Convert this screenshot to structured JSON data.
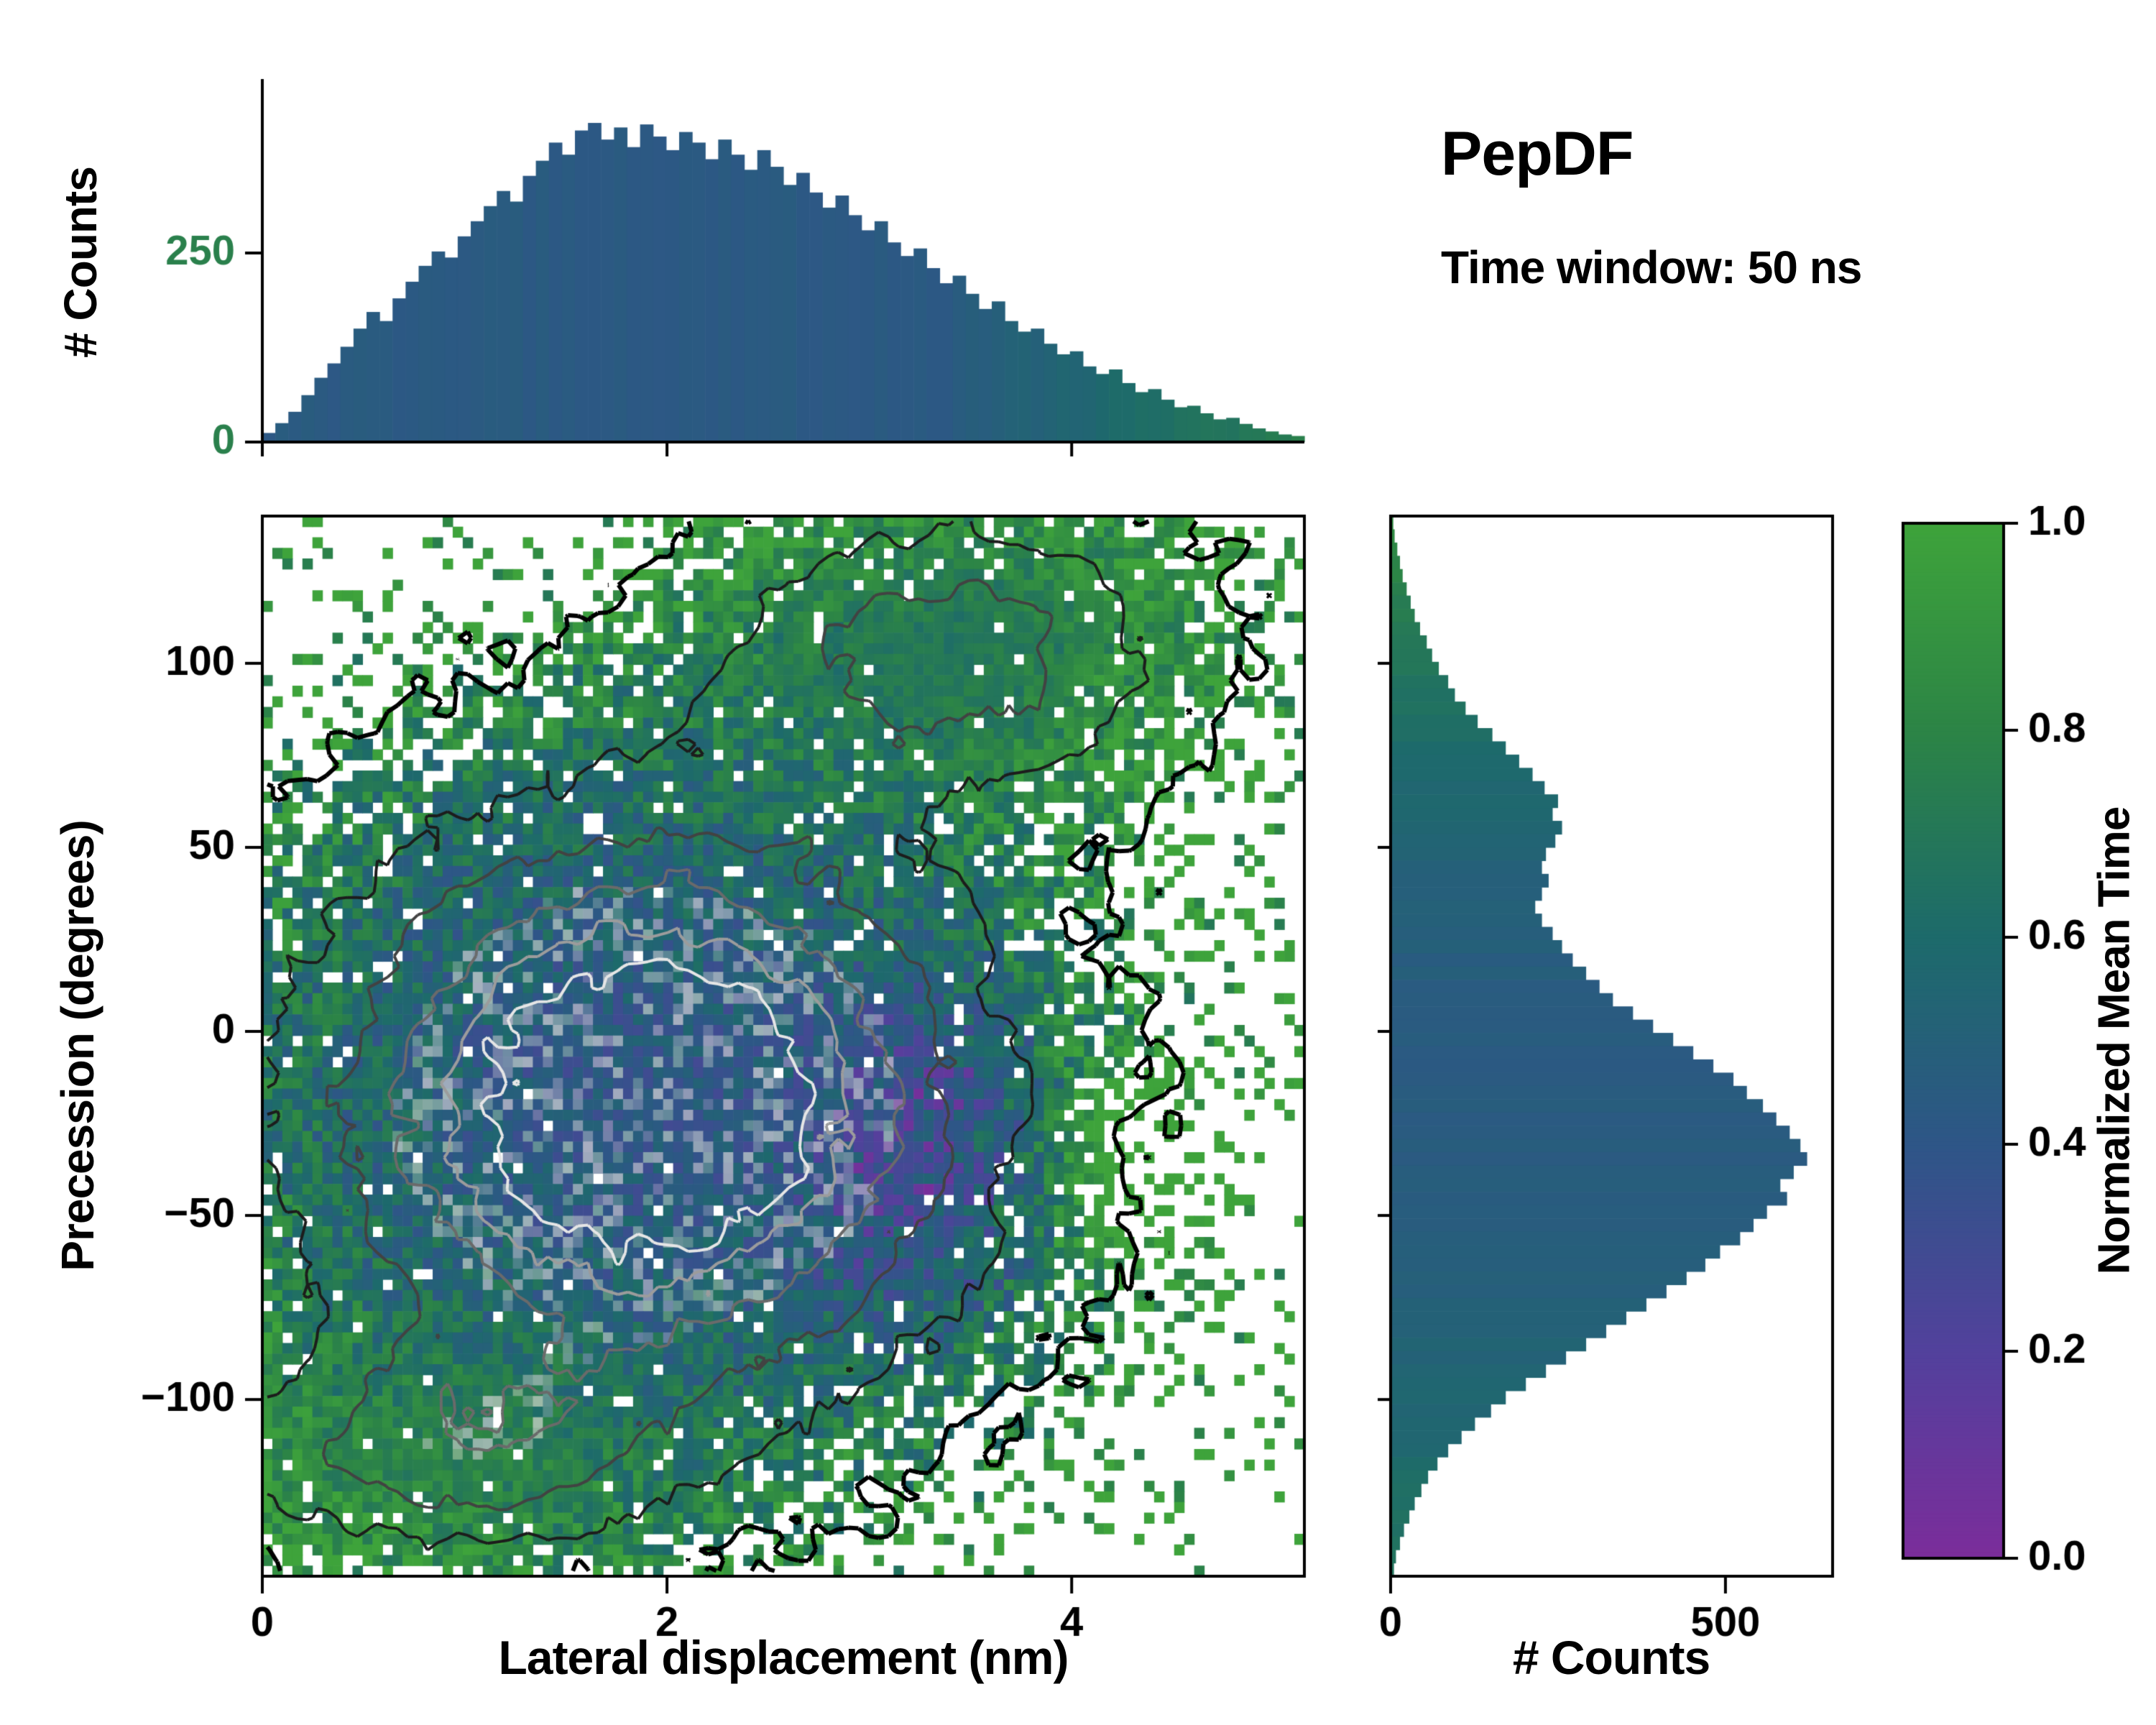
{
  "title": "PepDF",
  "subtitle": "Time window: 50 ns",
  "colormap": {
    "label": "Normalized Mean Time",
    "stops": [
      "#7b2d9b",
      "#52419c",
      "#2e5687",
      "#1d6a6b",
      "#2c8446",
      "#3ea33b"
    ],
    "ticks": [
      {
        "v": 0.0,
        "label": "0.0"
      },
      {
        "v": 0.2,
        "label": "0.2"
      },
      {
        "v": 0.4,
        "label": "0.4"
      },
      {
        "v": 0.6,
        "label": "0.6"
      },
      {
        "v": 0.8,
        "label": "0.8"
      },
      {
        "v": 1.0,
        "label": "1.0"
      }
    ]
  },
  "chart_data": [
    {
      "type": "bar",
      "name": "top-marginal-histogram",
      "ylabel": "# Counts",
      "x_range": [
        0,
        5.15
      ],
      "ylim": [
        0,
        480
      ],
      "y_ticks": [
        {
          "v": 0,
          "label": "0"
        },
        {
          "v": 250,
          "label": "250"
        }
      ],
      "x_ticks_unlabeled": [
        0,
        2,
        4
      ],
      "values": [
        12,
        25,
        40,
        62,
        85,
        104,
        126,
        150,
        172,
        160,
        190,
        212,
        233,
        252,
        244,
        272,
        292,
        312,
        332,
        318,
        352,
        372,
        396,
        380,
        412,
        422,
        400,
        416,
        390,
        420,
        404,
        386,
        410,
        396,
        374,
        400,
        380,
        360,
        386,
        364,
        340,
        356,
        330,
        310,
        326,
        300,
        280,
        292,
        264,
        246,
        256,
        230,
        210,
        220,
        196,
        176,
        186,
        160,
        146,
        150,
        130,
        116,
        120,
        100,
        90,
        96,
        78,
        66,
        70,
        56,
        46,
        48,
        38,
        30,
        32,
        24,
        18,
        14,
        10,
        8
      ]
    },
    {
      "type": "heatmap",
      "name": "main-density-map",
      "xlabel": "Lateral displacement (nm)",
      "ylabel": "Precession (degrees)",
      "value_label": "Normalized Mean Time",
      "xlim": [
        0,
        5.15
      ],
      "ylim": [
        -148,
        140
      ],
      "x_ticks": [
        {
          "v": 0,
          "label": "0"
        },
        {
          "v": 2,
          "label": "2"
        },
        {
          "v": 4,
          "label": "4"
        }
      ],
      "y_ticks": [
        {
          "v": 100,
          "label": "100"
        },
        {
          "v": 50,
          "label": "50"
        },
        {
          "v": 0,
          "label": "0"
        },
        {
          "v": -50,
          "label": "−50"
        },
        {
          "v": -100,
          "label": "−100"
        }
      ],
      "grid": [
        104,
        100
      ],
      "generator": {
        "seed": 7,
        "blobs": [
          {
            "x": 1.9,
            "y": -20,
            "sx": 1.15,
            "sy": 55,
            "a": 1.0
          },
          {
            "x": 3.4,
            "y": 105,
            "sx": 0.8,
            "sy": 26,
            "a": 0.5
          },
          {
            "x": 0.85,
            "y": -115,
            "sx": 0.8,
            "sy": 20,
            "a": 0.4
          }
        ],
        "mask_threshold": 0.13,
        "purple_patch": {
          "x": 3.3,
          "y": -35,
          "sx": 0.55,
          "sy": 45,
          "amp": 0.38
        },
        "green_patch": {
          "x": 4.35,
          "y": -33,
          "sx": 0.33,
          "sy": 26,
          "amp": 0.55
        }
      },
      "contours": {
        "levels": [
          0.13,
          0.3,
          0.46,
          0.6,
          0.72,
          0.82
        ],
        "colors": [
          "#000000",
          "#1c1c1c",
          "#424242",
          "#6a6a6a",
          "#9c9c9c",
          "#e6e6e6"
        ],
        "widths": [
          6,
          4,
          4,
          4,
          4,
          4
        ]
      }
    },
    {
      "type": "bar",
      "name": "right-marginal-histogram",
      "orientation": "horizontal",
      "xlabel": "# Counts",
      "y_range": [
        140,
        -140
      ],
      "xlim": [
        0,
        660
      ],
      "x_ticks": [
        {
          "v": 0,
          "label": "0"
        },
        {
          "v": 500,
          "label": "500"
        }
      ],
      "values": [
        4,
        6,
        10,
        14,
        18,
        24,
        30,
        36,
        44,
        54,
        62,
        72,
        86,
        96,
        112,
        130,
        152,
        172,
        192,
        212,
        230,
        250,
        242,
        256,
        246,
        232,
        226,
        236,
        226,
        216,
        226,
        242,
        256,
        272,
        292,
        312,
        332,
        362,
        392,
        422,
        452,
        482,
        512,
        532,
        556,
        576,
        596,
        612,
        622,
        602,
        582,
        592,
        562,
        542,
        522,
        492,
        470,
        442,
        412,
        382,
        352,
        322,
        292,
        262,
        232,
        202,
        172,
        150,
        126,
        106,
        86,
        70,
        56,
        46,
        36,
        28,
        20,
        14,
        8,
        5
      ]
    }
  ]
}
